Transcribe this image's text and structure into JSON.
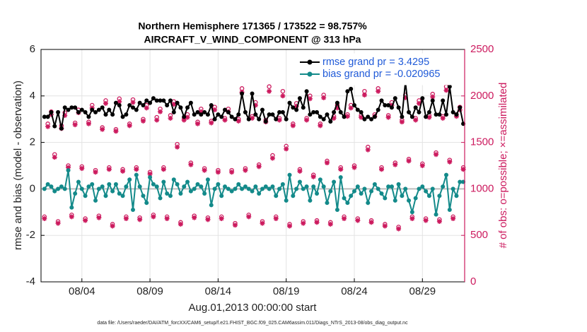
{
  "chart_data": {
    "type": "line",
    "title": "Northern Hemisphere 171365 / 173522 = 98.757%",
    "subtitle": "AIRCRAFT_V_WIND_COMPONENT @ 313 hPa",
    "xlabel": "Aug.01,2013 00:00:00 start",
    "ylabel": "rmse and bias (model - observation)",
    "y2label": "# of obs: o=possible; ×=assimilated",
    "footnote": "data file: /Users/raeder/DAI/ATM_forcXX/CAM6_setup/f.e21.FHIST_BGC.f09_025.CAM6assim.011/Diags_NTrS_2013-08/obs_diag_output.nc",
    "xlim": [
      0,
      31.1
    ],
    "xticks": [
      {
        "value": 3,
        "label": "08/04"
      },
      {
        "value": 8,
        "label": "08/09"
      },
      {
        "value": 13,
        "label": "08/14"
      },
      {
        "value": 18,
        "label": "08/19"
      },
      {
        "value": 23,
        "label": "08/24"
      },
      {
        "value": 28,
        "label": "08/29"
      }
    ],
    "ylim": [
      -4,
      6
    ],
    "yticks": [
      -4,
      -2,
      0,
      2,
      4,
      6
    ],
    "y2lim": [
      0,
      2500
    ],
    "y2ticks": [
      0,
      500,
      1000,
      1500,
      2000,
      2500
    ],
    "grid": true,
    "legend": "upper right",
    "x": [
      0.25,
      0.5,
      0.75,
      1,
      1.25,
      1.5,
      1.75,
      2,
      2.25,
      2.5,
      2.75,
      3,
      3.25,
      3.5,
      3.75,
      4,
      4.25,
      4.5,
      4.75,
      5,
      5.25,
      5.5,
      5.75,
      6,
      6.25,
      6.5,
      6.75,
      7,
      7.25,
      7.5,
      7.75,
      8,
      8.25,
      8.5,
      8.75,
      9,
      9.25,
      9.5,
      9.75,
      10,
      10.25,
      10.5,
      10.75,
      11,
      11.25,
      11.5,
      11.75,
      12,
      12.25,
      12.5,
      12.75,
      13,
      13.25,
      13.5,
      13.75,
      14,
      14.25,
      14.5,
      14.75,
      15,
      15.25,
      15.5,
      15.75,
      16,
      16.25,
      16.5,
      16.75,
      17,
      17.25,
      17.5,
      17.75,
      18,
      18.25,
      18.5,
      18.75,
      19,
      19.25,
      19.5,
      19.75,
      20,
      20.25,
      20.5,
      20.75,
      21,
      21.25,
      21.5,
      21.75,
      22,
      22.25,
      22.5,
      22.75,
      23,
      23.25,
      23.5,
      23.75,
      24,
      24.25,
      24.5,
      24.75,
      25,
      25.25,
      25.5,
      25.75,
      26,
      26.25,
      26.5,
      26.75,
      27,
      27.25,
      27.5,
      27.75,
      28,
      28.25,
      28.5,
      28.75,
      29,
      29.25,
      29.5,
      29.75,
      30,
      30.25,
      30.5,
      30.75,
      31
    ],
    "series": [
      {
        "name": "rmse grand pr = 3.4295",
        "color": "#000000",
        "marker": "dot",
        "line": true,
        "axis": "y",
        "values": [
          3.1,
          3.1,
          3.3,
          2.7,
          3.3,
          2.6,
          3.5,
          3.4,
          3.5,
          3.5,
          3.3,
          3.4,
          3.3,
          3.1,
          3.4,
          3.3,
          3.4,
          3.5,
          3.2,
          3.4,
          3.2,
          3.7,
          3.6,
          3.1,
          3.2,
          3.6,
          3.5,
          3.4,
          3.7,
          3.6,
          3.8,
          3.7,
          3.9,
          3.8,
          3.8,
          3.8,
          3.6,
          3.8,
          3.3,
          3.7,
          3.5,
          3.1,
          3.5,
          3.7,
          3.2,
          3.3,
          3.2,
          3.3,
          3.2,
          3.6,
          3.0,
          3.2,
          3.1,
          3.4,
          3.3,
          3.1,
          3.0,
          3.2,
          4.1,
          3.3,
          3.0,
          4.1,
          3.2,
          3.0,
          3.4,
          2.9,
          3.2,
          3.2,
          3.0,
          3.3,
          3.3,
          3.0,
          3.7,
          3.5,
          3.4,
          3.9,
          3.5,
          4.2,
          3.2,
          3.3,
          3.3,
          3.1,
          3.0,
          3.2,
          2.9,
          3.3,
          3.7,
          3.3,
          3.1,
          4.2,
          4.3,
          3.6,
          3.4,
          3.3,
          3.0,
          3.1,
          3.0,
          3.1,
          3.4,
          3.8,
          3.6,
          3.6,
          3.5,
          3.9,
          3.5,
          3.1,
          4.6,
          3.3,
          3.1,
          3.5,
          3.3,
          3.9,
          3.1,
          3.3,
          3.8,
          3.2,
          3.2,
          3.8,
          3.2,
          4.4,
          3.3,
          3.2,
          3.5,
          2.8
        ]
      },
      {
        "name": "bias grand pr = -0.020965",
        "color": "#138a8a",
        "marker": "dot",
        "line": true,
        "axis": "y",
        "values": [
          0.0,
          0.2,
          0.1,
          -0.1,
          0.0,
          0.1,
          0.0,
          0.8,
          -0.8,
          -0.2,
          0.3,
          0.0,
          -0.3,
          0.1,
          0.2,
          -0.5,
          0.0,
          0.1,
          -0.3,
          0.2,
          -0.1,
          0.2,
          -0.2,
          -0.3,
          0.1,
          0.4,
          -0.9,
          0.6,
          0.1,
          -0.3,
          -0.6,
          0.5,
          0.2,
          0.1,
          -0.4,
          0.3,
          -0.2,
          -0.3,
          0.4,
          0.2,
          -0.2,
          0.1,
          0.3,
          -0.1,
          0.0,
          0.2,
          0.1,
          -0.2,
          0.4,
          -0.7,
          0.0,
          0.2,
          -0.3,
          0.1,
          0.0,
          -0.1,
          0.0,
          0.2,
          0.0,
          0.1,
          0.0,
          -0.1,
          0.1,
          -0.2,
          0.0,
          0.1,
          0.0,
          0.1,
          -0.3,
          0.0,
          0.2,
          -0.5,
          0.6,
          -0.3,
          0.0,
          0.3,
          0.0,
          0.1,
          -0.5,
          0.1,
          -0.2,
          0.4,
          0.1,
          -0.6,
          -0.1,
          0.3,
          -0.9,
          0.5,
          -0.4,
          -0.6,
          -0.3,
          -0.1,
          0.1,
          -0.2,
          0.0,
          -0.6,
          -0.1,
          0.2,
          0.0,
          -0.2,
          -0.4,
          0.1,
          0.1,
          -0.5,
          0.2,
          -0.3,
          0.0,
          -0.5,
          -1.0,
          -0.4,
          0.0,
          0.1,
          -0.1,
          -0.3,
          0.0,
          -1.1,
          -0.3,
          0.1,
          0.6,
          -0.9,
          0.0,
          -0.3,
          0.3,
          0.3
        ]
      },
      {
        "color": "#cc1a5e",
        "marker": "circle",
        "line": false,
        "axis": "y2",
        "values": [
          700,
          1700,
          1830,
          1370,
          650,
          1680,
          1820,
          1250,
          720,
          1710,
          1850,
          1240,
          680,
          1720,
          1900,
          1200,
          710,
          1660,
          1950,
          1230,
          620,
          1640,
          1970,
          1210,
          700,
          1700,
          1960,
          1230,
          690,
          1750,
          1900,
          1180,
          720,
          1770,
          1860,
          1230,
          700,
          1790,
          1940,
          1480,
          640,
          1760,
          1800,
          1280,
          710,
          1720,
          1860,
          1220,
          690,
          1730,
          1880,
          1200,
          700,
          1760,
          1860,
          1200,
          630,
          1750,
          2080,
          1220,
          720,
          1780,
          1930,
          1260,
          650,
          1740,
          2100,
          1360,
          700,
          1760,
          2050,
          1460,
          620,
          1700,
          1920,
          1210,
          650,
          1760,
          2000,
          1150,
          660,
          1700,
          2010,
          1300,
          640,
          1780,
          1900,
          1230,
          700,
          1800,
          1900,
          1250,
          680,
          1790,
          2050,
          1450,
          660,
          1800,
          2080,
          1230,
          620,
          1790,
          1930,
          1280,
          590,
          1740,
          2010,
          1320,
          700,
          1760,
          1950,
          1270,
          680,
          1790,
          2020,
          1390,
          670,
          1780,
          2100,
          1310,
          700,
          1800,
          1880,
          1230
        ]
      },
      {
        "color": "#cc1a5e",
        "marker": "asterisk",
        "line": false,
        "axis": "y2",
        "values": [
          680,
          1670,
          1800,
          1340,
          630,
          1650,
          1790,
          1230,
          700,
          1690,
          1820,
          1220,
          660,
          1700,
          1870,
          1180,
          690,
          1640,
          1920,
          1210,
          600,
          1620,
          1940,
          1190,
          680,
          1680,
          1930,
          1210,
          670,
          1730,
          1870,
          1160,
          700,
          1740,
          1830,
          1210,
          680,
          1760,
          1910,
          1450,
          620,
          1740,
          1770,
          1260,
          690,
          1700,
          1830,
          1200,
          670,
          1710,
          1850,
          1180,
          680,
          1740,
          1830,
          1180,
          610,
          1730,
          2040,
          1200,
          700,
          1760,
          1900,
          1240,
          630,
          1720,
          2050,
          1330,
          680,
          1740,
          2000,
          1430,
          600,
          1680,
          1890,
          1190,
          630,
          1740,
          1970,
          1130,
          640,
          1680,
          1980,
          1280,
          620,
          1760,
          1870,
          1210,
          680,
          1780,
          1870,
          1230,
          660,
          1770,
          2010,
          1420,
          640,
          1780,
          2050,
          1210,
          600,
          1770,
          1900,
          1260,
          570,
          1720,
          1980,
          1300,
          680,
          1740,
          1920,
          1250,
          660,
          1770,
          1990,
          1370,
          650,
          1760,
          2060,
          1290,
          680,
          1780,
          1850,
          1210
        ]
      }
    ]
  }
}
